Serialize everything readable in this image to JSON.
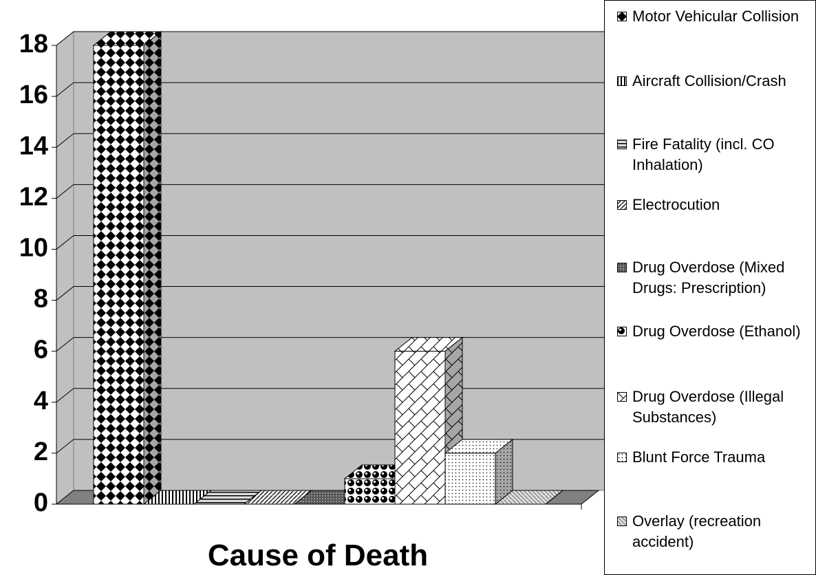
{
  "chart_data": {
    "type": "bar",
    "x_label": "Cause of Death",
    "ylim": [
      0,
      18
    ],
    "yticks": [
      0,
      2,
      4,
      6,
      8,
      10,
      12,
      14,
      16,
      18
    ],
    "grid": true,
    "series": [
      {
        "name": "Motor Vehicular Collision",
        "pattern": "diamond",
        "values": [
          18
        ]
      },
      {
        "name": "Aircraft Collision/Crash",
        "pattern": "vlines",
        "values": [
          0
        ]
      },
      {
        "name": "Fire Fatality (incl. CO Inhalation)",
        "pattern": "hlines",
        "values": [
          0
        ]
      },
      {
        "name": "Electrocution",
        "pattern": "diag",
        "values": [
          0
        ]
      },
      {
        "name": "Drug Overdose (Mixed Drugs: Prescription)",
        "pattern": "dense",
        "values": [
          0
        ]
      },
      {
        "name": "Drug Overdose (Ethanol)",
        "pattern": "balls",
        "values": [
          1
        ]
      },
      {
        "name": "Drug Overdose (Illegal Substances)",
        "pattern": "weave",
        "values": [
          6
        ]
      },
      {
        "name": "Blunt Force Trauma",
        "pattern": "dots",
        "values": [
          2
        ]
      },
      {
        "name": "Overlay (recreation accident)",
        "pattern": "lightdiag",
        "values": [
          0
        ]
      }
    ]
  }
}
